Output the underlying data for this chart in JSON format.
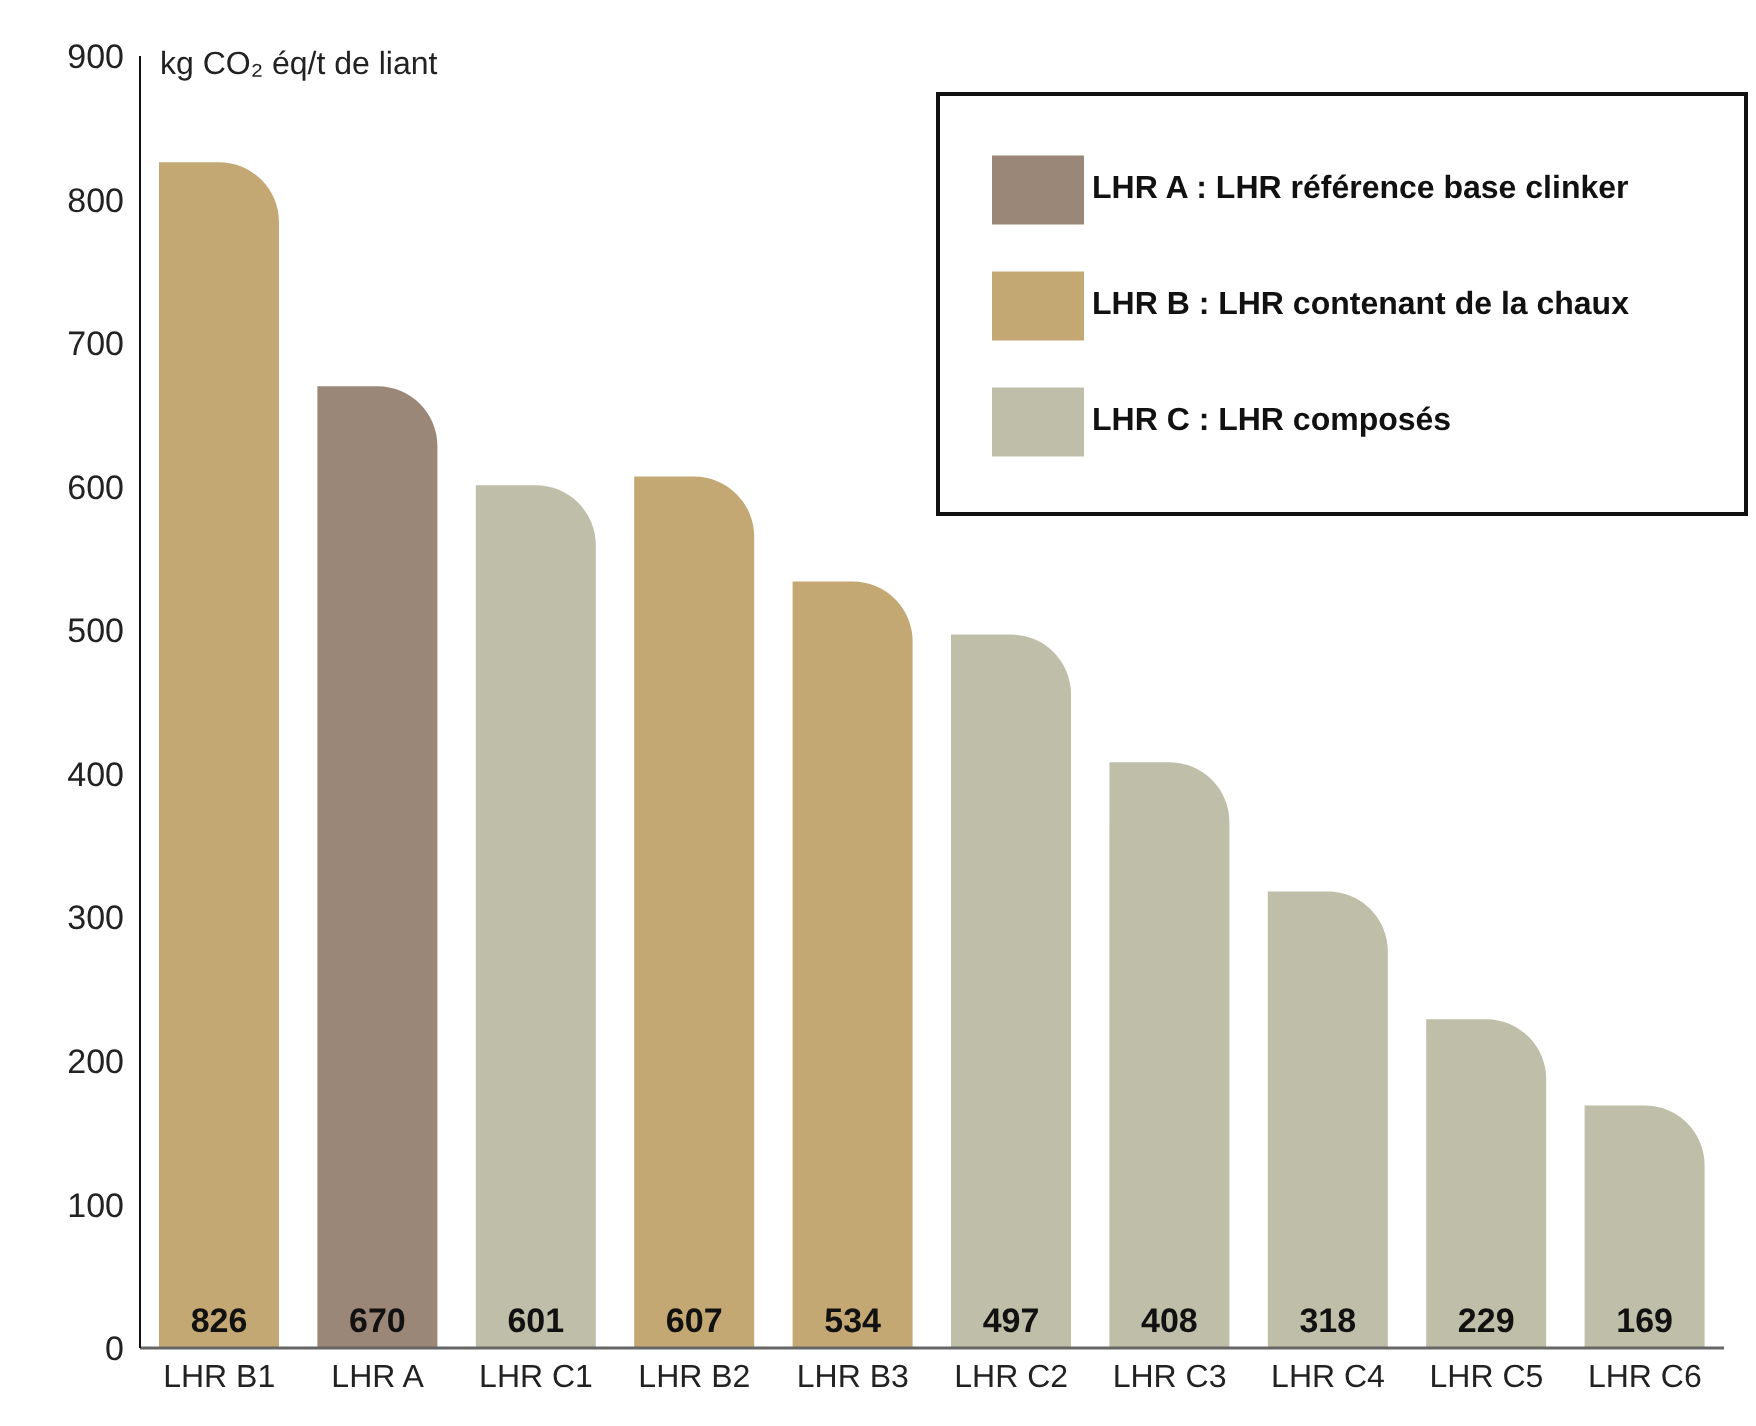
{
  "chart_data": {
    "type": "bar",
    "ylabel": "kg CO₂ éq/t de liant",
    "categories": [
      "LHR B1",
      "LHR A",
      "LHR C1",
      "LHR B2",
      "LHR B3",
      "LHR C2",
      "LHR C3",
      "LHR C4",
      "LHR C5",
      "LHR C6"
    ],
    "series": [
      {
        "name": "LHR A : LHR référence base clinker",
        "color": "#9a8777",
        "values": [
          null,
          670,
          null,
          null,
          null,
          null,
          null,
          null,
          null,
          null
        ]
      },
      {
        "name": "LHR B : LHR contenant de la chaux",
        "color": "#c4a873",
        "values": [
          826,
          null,
          null,
          607,
          534,
          null,
          null,
          null,
          null,
          null
        ]
      },
      {
        "name": "LHR C : LHR composés",
        "color": "#bfbea9",
        "values": [
          null,
          null,
          601,
          null,
          null,
          497,
          408,
          318,
          229,
          169
        ]
      }
    ],
    "stacked": true,
    "ylim": [
      0,
      900
    ],
    "yticks": [
      0,
      100,
      200,
      300,
      400,
      500,
      600,
      700,
      800,
      900
    ],
    "data_labels": true,
    "grid": false,
    "legend": "top right"
  }
}
